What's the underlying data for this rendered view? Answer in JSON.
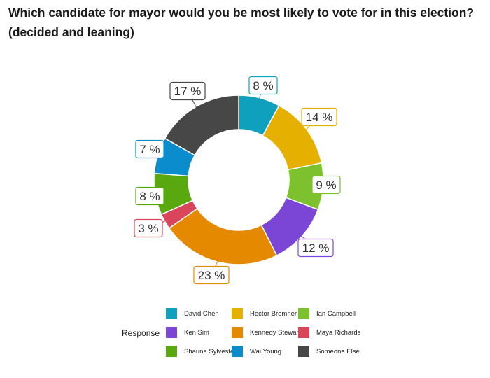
{
  "title": "Which candidate for mayor would you be most likely to vote for in this election? (decided and leaning)",
  "legend_title": "Response",
  "chart_data": {
    "type": "pie",
    "donut": true,
    "unit": "%",
    "legend_position": "bottom",
    "categories": [
      "David Chen",
      "Hector Bremner",
      "Ian Campbell",
      "Ken Sim",
      "Kennedy Stewart",
      "Maya Richards",
      "Shauna Sylvester",
      "Wai Young",
      "Someone Else"
    ],
    "values": [
      8,
      14,
      9,
      12,
      23,
      3,
      8,
      7,
      17
    ],
    "labels": [
      "8 %",
      "14 %",
      "9 %",
      "12 %",
      "23 %",
      "3 %",
      "8 %",
      "7 %",
      "17 %"
    ],
    "colors": [
      "#0fa0bd",
      "#e6b000",
      "#7dc22e",
      "#7b45d6",
      "#e58a00",
      "#d9455a",
      "#5aa80f",
      "#0a8ccd",
      "#474747"
    ]
  }
}
